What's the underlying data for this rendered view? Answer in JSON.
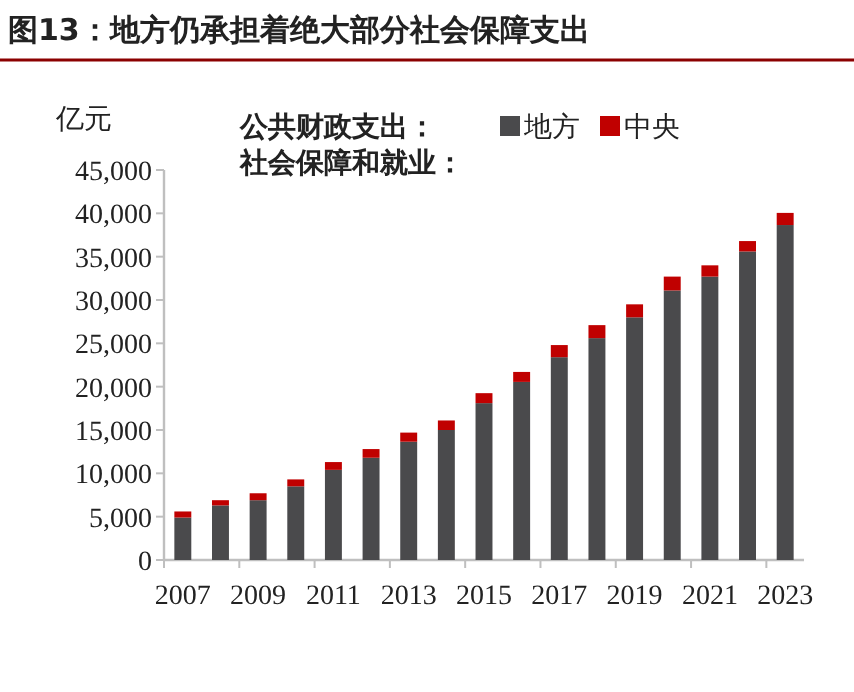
{
  "chart_data": {
    "type": "bar",
    "title": "图13：地方仍承担着绝大部分社会保障支出",
    "ylabel": "亿元",
    "annotations": [
      "公共财政支出：",
      "社会保障和就业："
    ],
    "categories": [
      "2007",
      null,
      "2009",
      null,
      "2011",
      null,
      "2013",
      null,
      "2015",
      null,
      "2017",
      null,
      "2019",
      null,
      "2021",
      null,
      "2023"
    ],
    "stacked": true,
    "series": [
      {
        "name": "地方",
        "color": "#4a4a4c",
        "values": [
          4900,
          6300,
          6900,
          8500,
          10400,
          11800,
          13650,
          15000,
          18100,
          20550,
          23400,
          25600,
          28000,
          31100,
          32700,
          35600,
          38650
        ]
      },
      {
        "name": "中央",
        "color": "#c00000",
        "values": [
          700,
          600,
          800,
          800,
          900,
          1000,
          1050,
          1100,
          1150,
          1150,
          1400,
          1500,
          1500,
          1600,
          1300,
          1200,
          1400
        ]
      }
    ],
    "ylim": [
      0,
      45000
    ],
    "yticks": [
      {
        "value": 0,
        "label": "0"
      },
      {
        "value": 5000,
        "label": "5,000"
      },
      {
        "value": 10000,
        "label": "10,000"
      },
      {
        "value": 15000,
        "label": "15,000"
      },
      {
        "value": 20000,
        "label": "20,000"
      },
      {
        "value": 25000,
        "label": "25,000"
      },
      {
        "value": 30000,
        "label": "30,000"
      },
      {
        "value": 35000,
        "label": "35,000"
      },
      {
        "value": 40000,
        "label": "40,000"
      },
      {
        "value": 45000,
        "label": "45,000"
      }
    ],
    "grid": false,
    "legend": "top right"
  }
}
